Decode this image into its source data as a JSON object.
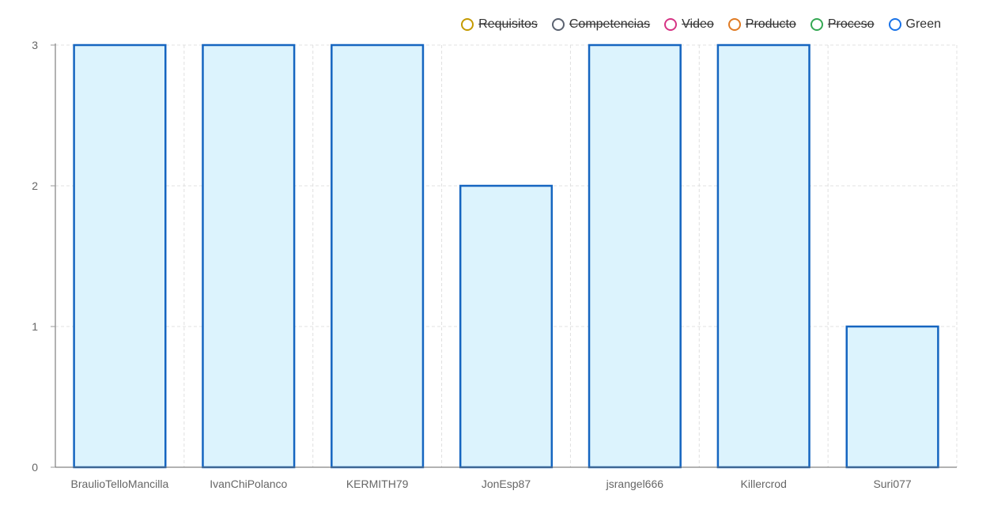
{
  "chart_data": {
    "type": "bar",
    "categories": [
      "BraulioTelloMancilla",
      "IvanChiPolanco",
      "KERMITH79",
      "JonEsp87",
      "jsrangel666",
      "Killercrod",
      "Suri077"
    ],
    "series": [
      {
        "name": "Green",
        "values": [
          3,
          3,
          3,
          2,
          3,
          3,
          1
        ],
        "border_color": "#1565c0",
        "fill_color": "#dcf3fd"
      }
    ],
    "ylim": [
      0,
      3
    ],
    "yticks": [
      "0",
      "1",
      "2",
      "3"
    ],
    "grid": true,
    "legend_position": "top-right",
    "legend": [
      {
        "label": "Requisitos",
        "color": "#c49a00",
        "hidden": true
      },
      {
        "label": "Competencias",
        "color": "#5a6270",
        "hidden": true
      },
      {
        "label": "Video",
        "color": "#d63384",
        "hidden": true
      },
      {
        "label": "Producto",
        "color": "#e07b24",
        "hidden": true
      },
      {
        "label": "Proceso",
        "color": "#34a853",
        "hidden": true
      },
      {
        "label": "Green",
        "color": "#1a73e8",
        "hidden": false
      }
    ]
  }
}
